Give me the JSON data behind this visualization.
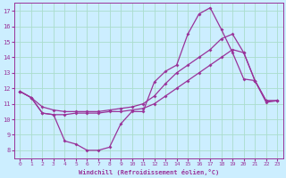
{
  "xlabel": "Windchill (Refroidissement éolien,°C)",
  "xlim": [
    -0.5,
    23.5
  ],
  "ylim": [
    7.5,
    17.5
  ],
  "yticks": [
    8,
    9,
    10,
    11,
    12,
    13,
    14,
    15,
    16,
    17
  ],
  "xticks": [
    0,
    1,
    2,
    3,
    4,
    5,
    6,
    7,
    8,
    9,
    10,
    11,
    12,
    13,
    14,
    15,
    16,
    17,
    18,
    19,
    20,
    21,
    22,
    23
  ],
  "background_color": "#cceeff",
  "grid_color": "#aaddcc",
  "line_color": "#993399",
  "figsize": [
    3.2,
    2.0
  ],
  "dpi": 100,
  "line1_x": [
    0,
    1,
    2,
    3,
    4,
    5,
    6,
    7,
    8,
    9,
    10,
    11,
    12,
    13,
    14,
    15,
    16,
    17,
    18,
    19,
    20,
    21,
    22,
    23
  ],
  "line1_y": [
    11.8,
    11.4,
    10.4,
    10.3,
    8.6,
    8.4,
    8.0,
    8.0,
    8.2,
    9.7,
    10.5,
    10.5,
    12.4,
    13.1,
    13.5,
    15.5,
    16.8,
    17.2,
    15.8,
    14.3,
    12.6,
    12.5,
    11.1,
    11.2
  ],
  "line2_x": [
    0,
    1,
    2,
    3,
    4,
    5,
    6,
    7,
    8,
    9,
    10,
    11,
    12,
    13,
    14,
    15,
    16,
    17,
    18,
    19,
    20,
    21,
    22,
    23
  ],
  "line2_y": [
    11.8,
    11.4,
    10.4,
    10.3,
    10.3,
    10.4,
    10.4,
    10.4,
    10.5,
    10.5,
    10.6,
    10.7,
    11.0,
    11.5,
    12.0,
    12.5,
    13.0,
    13.5,
    14.0,
    14.5,
    14.3,
    12.5,
    11.2,
    11.2
  ],
  "line3_x": [
    0,
    1,
    2,
    3,
    4,
    5,
    6,
    7,
    8,
    9,
    10,
    11,
    12,
    13,
    14,
    15,
    16,
    17,
    18,
    19,
    20,
    21,
    22,
    23
  ],
  "line3_y": [
    11.8,
    11.4,
    10.8,
    10.6,
    10.5,
    10.5,
    10.5,
    10.5,
    10.6,
    10.7,
    10.8,
    11.0,
    11.5,
    12.3,
    13.0,
    13.5,
    14.0,
    14.5,
    15.2,
    15.5,
    14.3,
    12.5,
    11.2,
    11.2
  ]
}
